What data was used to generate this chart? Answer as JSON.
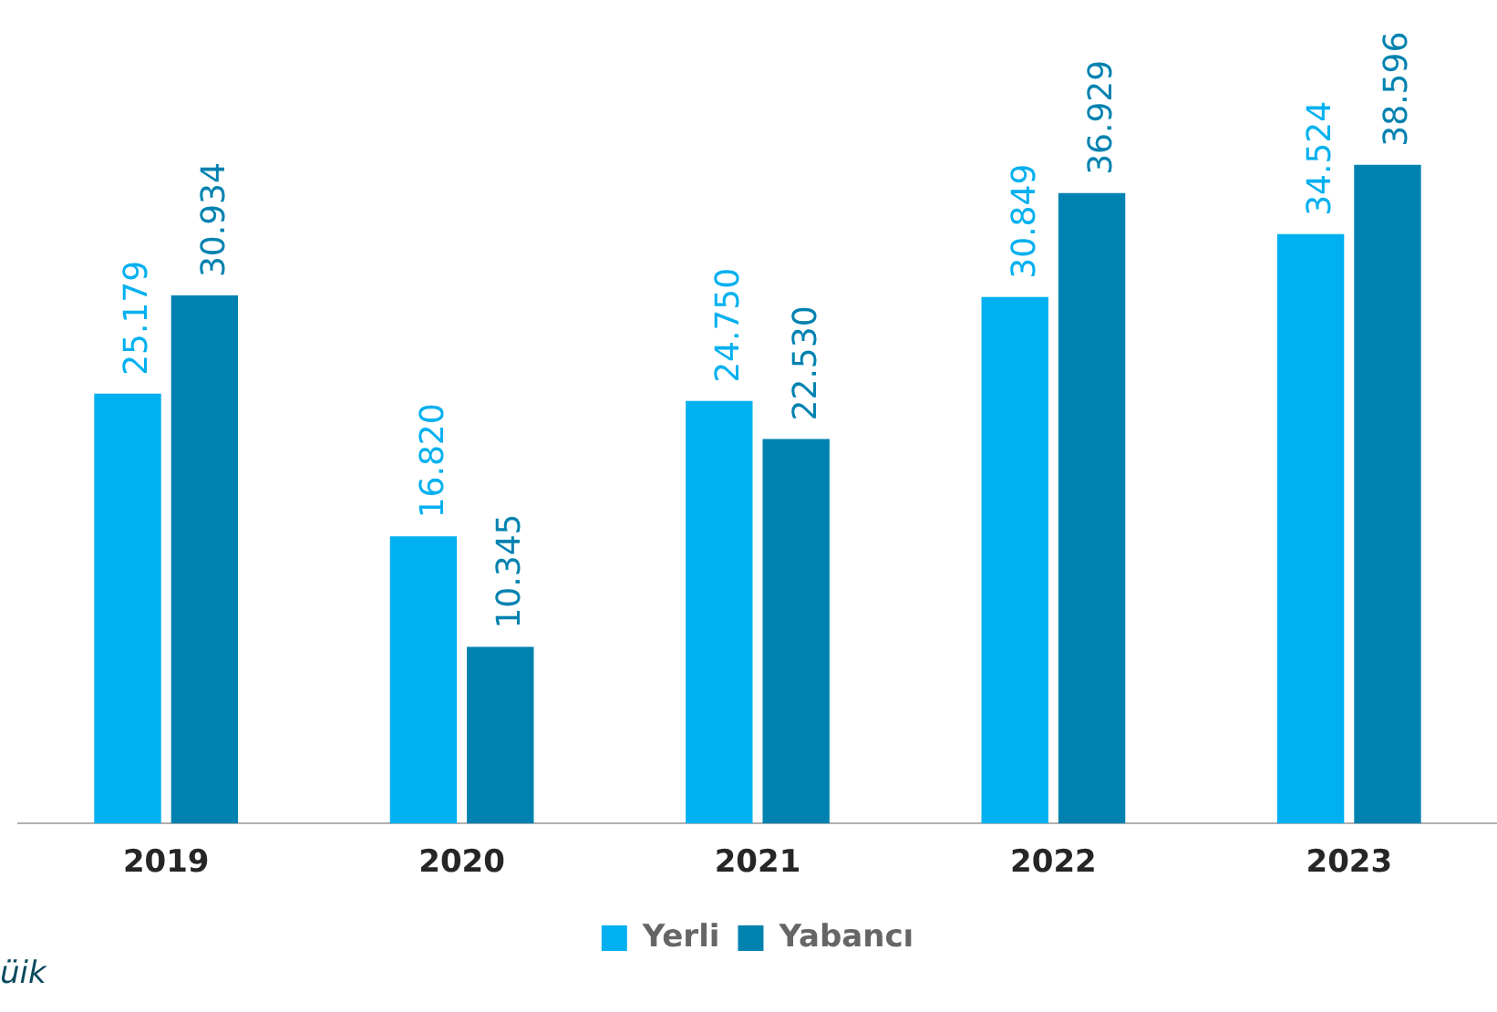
{
  "chart_data": {
    "type": "bar",
    "categories": [
      "2019",
      "2020",
      "2021",
      "2022",
      "2023"
    ],
    "series": [
      {
        "name": "Yerli",
        "color": "#00b0f0",
        "values": [
          25179,
          16820,
          24750,
          30849,
          34524
        ],
        "value_labels": [
          "25.179",
          "16.820",
          "24.750",
          "30.849",
          "34.524"
        ]
      },
      {
        "name": "Yabancı",
        "color": "#0082b0",
        "values": [
          30934,
          10345,
          22530,
          36929,
          38596
        ],
        "value_labels": [
          "30.934",
          "10.345",
          "22.530",
          "36.929",
          "38.596"
        ]
      }
    ],
    "legend": "bottom",
    "grid": false,
    "tick_labels": "x",
    "annotations": [
      "üik"
    ]
  }
}
